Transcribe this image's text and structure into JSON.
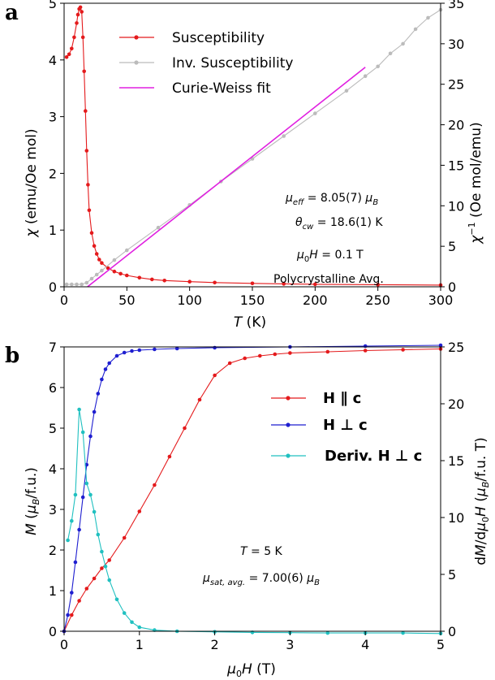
{
  "chart_data": [
    {
      "panel": "a",
      "type": "line",
      "xlabel": "T (K)",
      "ylabel": "χ (emu/Oe mol)",
      "y2label": "χ⁻¹ (Oe mol/emu)",
      "xlim": [
        0,
        300
      ],
      "ylim": [
        0,
        5
      ],
      "y2lim": [
        0,
        35
      ],
      "xticks": [
        0,
        50,
        100,
        150,
        200,
        250,
        300
      ],
      "yticks": [
        0,
        1,
        2,
        3,
        4,
        5
      ],
      "y2ticks": [
        0,
        5,
        10,
        15,
        20,
        25,
        30,
        35
      ],
      "legend_position": "top-center",
      "series": [
        {
          "name": "Susceptibility",
          "axis": "left",
          "color": "#e41a1c",
          "x": [
            2,
            4,
            6,
            8,
            10,
            11,
            12,
            13,
            14,
            15,
            16,
            17,
            18,
            19,
            20,
            22,
            24,
            26,
            28,
            30,
            35,
            40,
            45,
            50,
            60,
            70,
            80,
            100,
            120,
            150,
            175,
            200,
            250,
            300
          ],
          "values": [
            4.05,
            4.1,
            4.2,
            4.4,
            4.65,
            4.8,
            4.9,
            4.93,
            4.85,
            4.4,
            3.8,
            3.1,
            2.4,
            1.8,
            1.35,
            0.95,
            0.72,
            0.58,
            0.48,
            0.42,
            0.33,
            0.27,
            0.23,
            0.2,
            0.16,
            0.13,
            0.11,
            0.09,
            0.075,
            0.06,
            0.052,
            0.045,
            0.037,
            0.03
          ]
        },
        {
          "name": "Inv. Susceptibility",
          "axis": "right",
          "color": "#bbbbbb",
          "x": [
            2,
            6,
            10,
            14,
            18,
            22,
            26,
            30,
            40,
            50,
            75,
            100,
            125,
            150,
            175,
            200,
            225,
            240,
            250,
            260,
            270,
            280,
            290,
            300
          ],
          "values": [
            0.3,
            0.3,
            0.3,
            0.3,
            0.5,
            1.0,
            1.5,
            2.0,
            3.3,
            4.5,
            7.3,
            10.1,
            13.0,
            15.8,
            18.6,
            21.4,
            24.2,
            26.0,
            27.2,
            28.8,
            30.0,
            31.8,
            33.2,
            34.2
          ]
        },
        {
          "name": "Curie-Weiss fit",
          "axis": "right",
          "color": "#e020e0",
          "x": [
            18.6,
            240
          ],
          "values": [
            0,
            27.1
          ]
        }
      ],
      "annotations": [
        "μ_eff = 8.05(7) μ_B",
        "θ_cw = 18.6(1) K",
        "μ0H = 0.1 T",
        "Polycrystalline Avg."
      ]
    },
    {
      "panel": "b",
      "type": "line",
      "xlabel": "μ0H (T)",
      "ylabel": "M (μB/f.u.)",
      "y2label": "dM/dμ0H (μB/f.u. T)",
      "xlim": [
        0,
        5
      ],
      "ylim": [
        0,
        7
      ],
      "y2lim": [
        0,
        25
      ],
      "xticks": [
        0,
        1,
        2,
        3,
        4,
        5
      ],
      "yticks": [
        0,
        1,
        2,
        3,
        4,
        5,
        6,
        7
      ],
      "y2ticks": [
        0,
        5,
        10,
        15,
        20,
        25
      ],
      "legend_position": "right",
      "series": [
        {
          "name": "H ∥ c",
          "axis": "left",
          "color": "#e41a1c",
          "x": [
            0,
            0.1,
            0.2,
            0.3,
            0.4,
            0.5,
            0.6,
            0.8,
            1.0,
            1.2,
            1.4,
            1.6,
            1.8,
            2.0,
            2.2,
            2.4,
            2.6,
            2.8,
            3.0,
            3.5,
            4.0,
            4.5,
            5.0
          ],
          "values": [
            0,
            0.4,
            0.75,
            1.05,
            1.3,
            1.55,
            1.75,
            2.3,
            2.95,
            3.6,
            4.3,
            5.0,
            5.7,
            6.3,
            6.6,
            6.72,
            6.78,
            6.82,
            6.85,
            6.88,
            6.91,
            6.93,
            6.95
          ]
        },
        {
          "name": "H ⊥ c",
          "axis": "left",
          "color": "#1f1fd0",
          "x": [
            0,
            0.05,
            0.1,
            0.15,
            0.2,
            0.25,
            0.3,
            0.35,
            0.4,
            0.45,
            0.5,
            0.55,
            0.6,
            0.7,
            0.8,
            0.9,
            1.0,
            1.2,
            1.5,
            2.0,
            3.0,
            4.0,
            5.0
          ],
          "values": [
            0,
            0.4,
            0.95,
            1.7,
            2.5,
            3.3,
            4.1,
            4.8,
            5.4,
            5.85,
            6.2,
            6.45,
            6.6,
            6.78,
            6.86,
            6.9,
            6.92,
            6.94,
            6.96,
            6.98,
            7.0,
            7.02,
            7.04
          ]
        },
        {
          "name": "Deriv. H ⊥ c",
          "axis": "right",
          "color": "#20c0c0",
          "x": [
            0.05,
            0.1,
            0.15,
            0.2,
            0.25,
            0.3,
            0.35,
            0.4,
            0.45,
            0.5,
            0.55,
            0.6,
            0.7,
            0.8,
            0.9,
            1.0,
            1.2,
            1.5,
            2.0,
            2.5,
            3.0,
            3.5,
            4.0,
            4.5,
            5.0
          ],
          "values": [
            8.0,
            9.7,
            12.0,
            19.5,
            17.5,
            13.0,
            12.0,
            10.5,
            8.5,
            7.0,
            5.7,
            4.5,
            2.8,
            1.6,
            0.8,
            0.35,
            0.1,
            0.0,
            -0.05,
            -0.1,
            -0.12,
            -0.15,
            -0.15,
            -0.15,
            -0.2
          ]
        }
      ],
      "annotations": [
        "T = 5 K",
        "μsat,avg. = 7.00(6) μB"
      ]
    }
  ]
}
